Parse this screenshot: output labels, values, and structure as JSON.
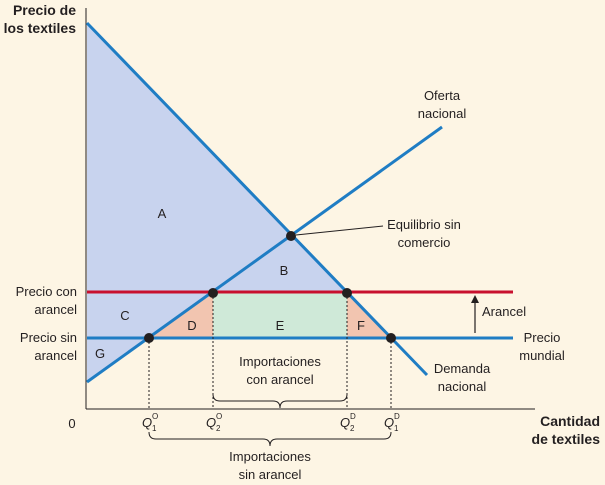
{
  "axis": {
    "y_title_line1": "Precio de",
    "y_title_line2": "los textiles",
    "x_title_line1": "Cantidad",
    "x_title_line2": "de textiles",
    "origin": "0"
  },
  "price_labels": {
    "with_tariff_line1": "Precio con",
    "with_tariff_line2": "arancel",
    "without_tariff_line1": "Precio sin",
    "without_tariff_line2": "arancel"
  },
  "curves": {
    "supply_line1": "Oferta",
    "supply_line2": "nacional",
    "demand_line1": "Demanda",
    "demand_line2": "nacional",
    "world_price_line1": "Precio",
    "world_price_line2": "mundial"
  },
  "annotations": {
    "equilibrium_line1": "Equilibrio sin",
    "equilibrium_line2": "comercio",
    "tariff": "Arancel",
    "imports_with_tariff_line1": "Importaciones",
    "imports_with_tariff_line2": "con arancel",
    "imports_without_tariff_line1": "Importaciones",
    "imports_without_tariff_line2": "sin arancel"
  },
  "regions": {
    "A": "A",
    "B": "B",
    "C": "C",
    "D": "D",
    "E": "E",
    "F": "F",
    "G": "G"
  },
  "quantities": {
    "q1s": {
      "base": "Q",
      "sub": "1",
      "sup": "O"
    },
    "q2s": {
      "base": "Q",
      "sub": "2",
      "sup": "O"
    },
    "q2d": {
      "base": "Q",
      "sub": "2",
      "sup": "D"
    },
    "q1d": {
      "base": "Q",
      "sub": "1",
      "sup": "D"
    }
  },
  "colors": {
    "background": "#fdf5e4",
    "consumer_surplus": "#c8d3ee",
    "deadweight": "#f2c5b0",
    "tariff_revenue": "#cfe9d8",
    "curves": "#1f7dc4",
    "tariff_line": "#c8102e",
    "world_price_line": "#1f7dc4"
  }
}
